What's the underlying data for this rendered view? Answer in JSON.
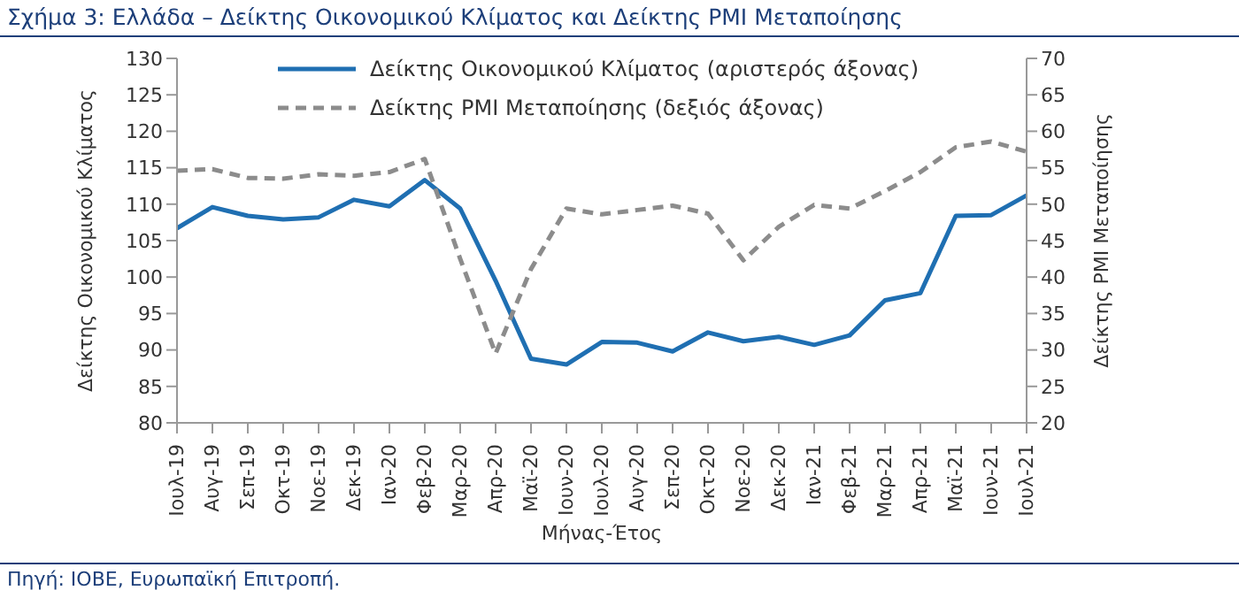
{
  "chart_data": {
    "type": "line",
    "title": "Σχήμα 3: Ελλάδα – Δείκτης Οικονομικού Κλίματος και Δείκτης PMI Μεταποίησης",
    "xlabel": "Μήνας-Έτος",
    "ylabel": "Δείκτης Οικονομικού Κλίματος",
    "y2label": "Δείκτης PMI Μεταποίησης",
    "annotations": [
      "Πηγή: ΙΟΒΕ, Ευρωπαϊκή Επιτροπή."
    ],
    "categories": [
      "Ιουλ-19",
      "Αυγ-19",
      "Σεπ-19",
      "Οκτ-19",
      "Νοε-19",
      "Δεκ-19",
      "Ιαν-20",
      "Φεβ-20",
      "Μαρ-20",
      "Απρ-20",
      "Μαϊ-20",
      "Ιουν-20",
      "Ιουλ-20",
      "Αυγ-20",
      "Σεπ-20",
      "Οκτ-20",
      "Νοε-20",
      "Δεκ-20",
      "Ιαν-21",
      "Φεβ-21",
      "Μαρ-21",
      "Απρ-21",
      "Μαϊ-21",
      "Ιουν-21",
      "Ιουλ-21"
    ],
    "series": [
      {
        "name": "Δείκτης Οικονομικού Κλίματος (αριστερός άξονας)",
        "color": "#1f6fb2",
        "line_style": "solid",
        "values": [
          106.7,
          109.6,
          108.4,
          107.9,
          108.2,
          110.6,
          109.7,
          113.3,
          109.4,
          99.5,
          88.8,
          88.0,
          91.1,
          91.0,
          89.8,
          92.4,
          91.2,
          91.8,
          90.7,
          92.0,
          96.8,
          97.8,
          108.4,
          108.5,
          111.2
        ]
      },
      {
        "name": "Δείκτης PMI Μεταποίησης (δεξιός άξονας)",
        "color": "#8c8c8c",
        "line_style": "dashed",
        "axis": "y2",
        "values": [
          54.6,
          54.8,
          53.6,
          53.5,
          54.1,
          53.9,
          54.4,
          56.2,
          42.5,
          29.5,
          41.1,
          49.4,
          48.6,
          49.2,
          49.8,
          48.7,
          42.3,
          46.9,
          49.9,
          49.4,
          51.8,
          54.4,
          57.8,
          58.6,
          57.2
        ]
      }
    ],
    "ylim": [
      80,
      130
    ],
    "yticks": [
      80,
      85,
      90,
      95,
      100,
      105,
      110,
      115,
      120,
      125,
      130
    ],
    "y2lim": [
      20,
      70
    ],
    "y2ticks": [
      20,
      25,
      30,
      35,
      40,
      45,
      50,
      55,
      60,
      65,
      70
    ],
    "grid": false,
    "legend": "top left",
    "marker": "none"
  }
}
